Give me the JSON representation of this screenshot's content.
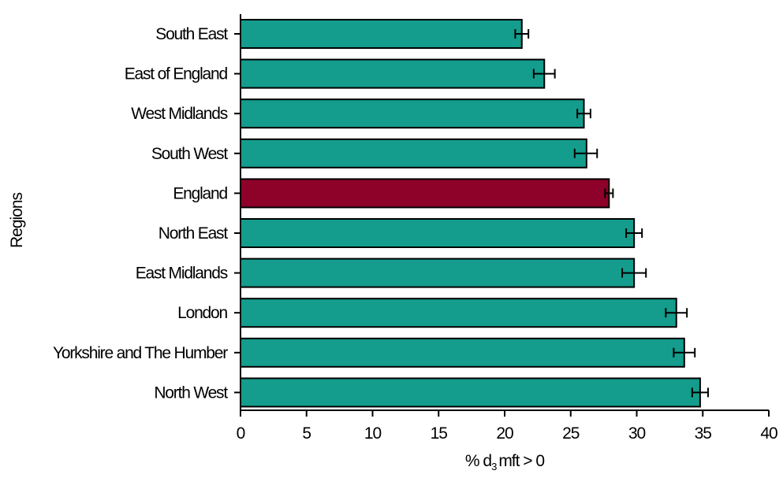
{
  "chart_data": {
    "type": "bar",
    "orientation": "horizontal",
    "ylabel": "Regions",
    "xlabel_main": "% d",
    "xlabel_sub": "3",
    "xlabel_rest": "mft > 0",
    "xlim": [
      0,
      40
    ],
    "xticks": [
      0,
      5,
      10,
      15,
      20,
      25,
      30,
      35,
      40
    ],
    "grid": false,
    "legend": "none",
    "colors": {
      "default_bar": "#149c8c",
      "highlight_bar": "#8e0128",
      "bar_outline": "#000000"
    },
    "categories": [
      "South East",
      "East of England",
      "West Midlands",
      "South West",
      "England",
      "North East",
      "East Midlands",
      "London",
      "Yorkshire and The Humber",
      "North West"
    ],
    "values": [
      21.3,
      23.0,
      26.0,
      26.2,
      27.9,
      29.8,
      29.8,
      33.0,
      33.6,
      34.8
    ],
    "error_low": [
      20.8,
      22.2,
      25.5,
      25.3,
      27.6,
      29.2,
      28.9,
      32.2,
      32.8,
      34.2
    ],
    "error_high": [
      21.8,
      23.8,
      26.5,
      27.0,
      28.2,
      30.4,
      30.7,
      33.8,
      34.4,
      35.4
    ],
    "highlight": [
      "England"
    ]
  }
}
